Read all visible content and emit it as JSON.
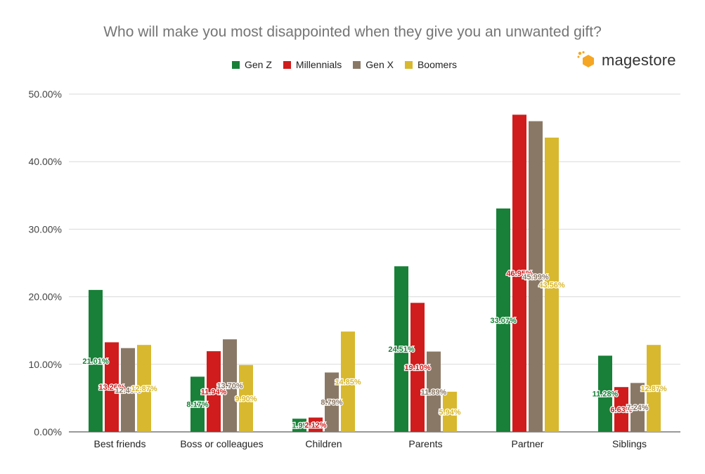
{
  "chart_data": {
    "type": "bar",
    "title": "Who will make you most disappointed when they give you an unwanted gift?",
    "categories": [
      "Best friends",
      "Boss or colleagues",
      "Children",
      "Parents",
      "Partner",
      "Siblings"
    ],
    "series": [
      {
        "name": "Gen Z",
        "color": "#188038",
        "values": [
          21.01,
          8.17,
          1.95,
          24.51,
          33.07,
          11.28
        ],
        "labels": [
          "21.01%",
          "8.17%",
          "1.95",
          "24.51%",
          "33.07%",
          "11.28%"
        ]
      },
      {
        "name": "Millennials",
        "color": "#d01c1c",
        "values": [
          13.26,
          11.94,
          2.12,
          19.1,
          46.95,
          6.63
        ],
        "labels": [
          "13.26%",
          "11.94%",
          "2.12%",
          "19.10%",
          "46.95%",
          "6.63%"
        ]
      },
      {
        "name": "Gen X",
        "color": "#8a7866",
        "values": [
          12.4,
          13.7,
          8.79,
          11.89,
          45.99,
          7.24
        ],
        "labels": [
          "12.40%",
          "13.70%",
          "8.79%",
          "11.89%",
          "45.99%",
          "7.24%"
        ]
      },
      {
        "name": "Boomers",
        "color": "#d8b82e",
        "values": [
          12.87,
          9.9,
          14.85,
          5.94,
          43.56,
          12.87
        ],
        "labels": [
          "12.87%",
          "9.90%",
          "14.85%",
          "5.94%",
          "43.56%",
          "12.87%"
        ]
      }
    ],
    "yticks": [
      "0.00%",
      "10.00%",
      "20.00%",
      "30.00%",
      "40.00%",
      "50.00%"
    ],
    "ylim": [
      0,
      50
    ],
    "grid": true,
    "legend_position": "top"
  },
  "brand": {
    "logo_text": "magestore",
    "logo_color": "#f5a623"
  }
}
